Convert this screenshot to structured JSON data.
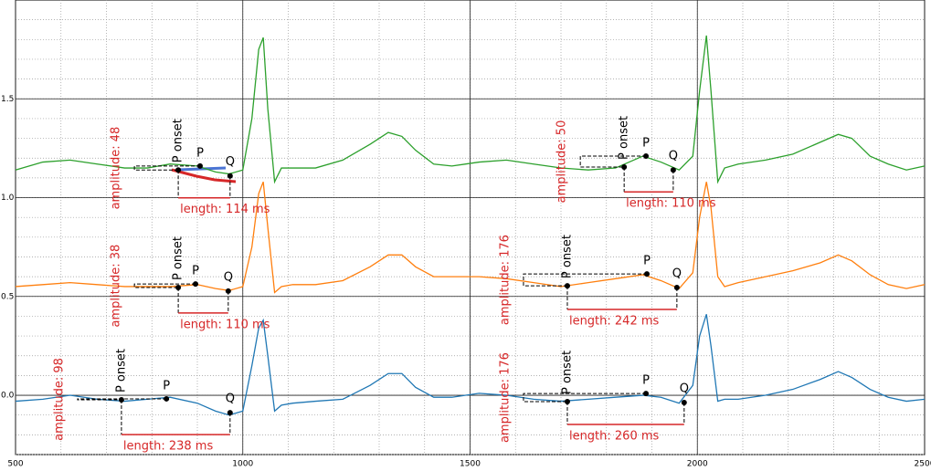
{
  "chart_data": {
    "type": "line",
    "xlim": [
      500,
      2500
    ],
    "xticks": [
      500,
      1000,
      1500,
      2000,
      2500
    ],
    "ylim": [
      -0.3,
      2.0
    ],
    "yticks": [
      {
        "value": 0,
        "label": "0.0"
      },
      0.5,
      {
        "value": 1,
        "label": "1.0"
      },
      1.5
    ],
    "grid": true,
    "x": [
      500,
      560,
      620,
      680,
      740,
      790,
      840,
      900,
      940,
      970,
      1000,
      1020,
      1035,
      1045,
      1055,
      1070,
      1085,
      1110,
      1160,
      1220,
      1280,
      1320,
      1350,
      1380,
      1420,
      1460,
      1520,
      1580,
      1640,
      1700,
      1760,
      1820,
      1880,
      1920,
      1960,
      1990,
      2005,
      2020,
      2030,
      2045,
      2060,
      2090,
      2150,
      2210,
      2270,
      2310,
      2340,
      2380,
      2420,
      2460,
      2500
    ],
    "series": [
      {
        "color": "#2ca02c",
        "values": [
          1.14,
          1.18,
          1.19,
          1.17,
          1.15,
          1.15,
          1.17,
          1.16,
          1.13,
          1.12,
          1.14,
          1.4,
          1.75,
          1.81,
          1.45,
          1.08,
          1.15,
          1.15,
          1.15,
          1.19,
          1.27,
          1.33,
          1.31,
          1.24,
          1.17,
          1.16,
          1.18,
          1.19,
          1.17,
          1.15,
          1.14,
          1.15,
          1.21,
          1.18,
          1.14,
          1.21,
          1.54,
          1.82,
          1.54,
          1.08,
          1.15,
          1.17,
          1.19,
          1.22,
          1.28,
          1.32,
          1.3,
          1.21,
          1.17,
          1.14,
          1.16
        ]
      },
      {
        "color": "#ff7f0e",
        "values": [
          0.55,
          0.56,
          0.57,
          0.56,
          0.55,
          0.55,
          0.55,
          0.56,
          0.54,
          0.53,
          0.55,
          0.75,
          1.02,
          1.08,
          0.85,
          0.52,
          0.55,
          0.56,
          0.56,
          0.58,
          0.65,
          0.71,
          0.71,
          0.65,
          0.6,
          0.6,
          0.6,
          0.59,
          0.57,
          0.55,
          0.57,
          0.59,
          0.61,
          0.58,
          0.54,
          0.62,
          0.9,
          1.08,
          0.95,
          0.6,
          0.55,
          0.57,
          0.6,
          0.63,
          0.67,
          0.71,
          0.68,
          0.61,
          0.56,
          0.54,
          0.56
        ]
      },
      {
        "color": "#1f77b4",
        "values": [
          -0.03,
          -0.02,
          0.0,
          -0.02,
          -0.03,
          -0.02,
          -0.01,
          -0.04,
          -0.08,
          -0.1,
          -0.08,
          0.15,
          0.34,
          0.38,
          0.2,
          -0.08,
          -0.05,
          -0.04,
          -0.03,
          -0.02,
          0.05,
          0.11,
          0.11,
          0.04,
          -0.01,
          -0.01,
          0.01,
          0.0,
          -0.02,
          -0.03,
          -0.02,
          -0.01,
          0.0,
          -0.01,
          -0.04,
          0.05,
          0.3,
          0.41,
          0.25,
          -0.03,
          -0.02,
          -0.02,
          0.0,
          0.03,
          0.08,
          0.12,
          0.09,
          0.03,
          -0.01,
          -0.03,
          -0.02
        ]
      }
    ],
    "annotations": [
      {
        "onset": {
          "x": 858,
          "y": 1.14
        },
        "p": {
          "x": 906,
          "y": 1.16
        },
        "q": {
          "x": 972,
          "y": 1.11
        },
        "onset_label": "P onset",
        "p_label": "P",
        "q_label": "Q",
        "amplitude_label": "amplitude: 48",
        "length_label": "length: 114 ms"
      },
      {
        "onset": {
          "x": 1839,
          "y": 1.155
        },
        "p": {
          "x": 1887,
          "y": 1.21
        },
        "q": {
          "x": 1947,
          "y": 1.14
        },
        "onset_label": "P onset",
        "p_label": "P",
        "q_label": "Q",
        "amplitude_label": "amplitude: 50",
        "length_label": "length: 110 ms"
      },
      {
        "onset": {
          "x": 858,
          "y": 0.545
        },
        "p": {
          "x": 896,
          "y": 0.563
        },
        "q": {
          "x": 968,
          "y": 0.527
        },
        "onset_label": "P onset",
        "p_label": "P",
        "q_label": "Q",
        "amplitude_label": "amplitude: 38",
        "length_label": "length: 110 ms"
      },
      {
        "onset": {
          "x": 1714,
          "y": 0.554
        },
        "p": {
          "x": 1889,
          "y": 0.614
        },
        "q": {
          "x": 1955,
          "y": 0.545
        },
        "onset_label": "P onset",
        "p_label": "P",
        "q_label": "Q",
        "amplitude_label": "amplitude: 176",
        "length_label": "length: 242 ms"
      },
      {
        "onset": {
          "x": 733,
          "y": -0.023
        },
        "p": {
          "x": 832,
          "y": -0.018
        },
        "q": {
          "x": 972,
          "y": -0.088
        },
        "onset_label": "P onset",
        "p_label": "P",
        "q_label": "Q",
        "amplitude_label": "amplitude: 98",
        "length_label": "length: 238 ms"
      },
      {
        "onset": {
          "x": 1714,
          "y": -0.032
        },
        "p": {
          "x": 1887,
          "y": 0.009
        },
        "q": {
          "x": 1971,
          "y": -0.037
        },
        "onset_label": "P onset",
        "p_label": "P",
        "q_label": "Q",
        "amplitude_label": "amplitude: 176",
        "length_label": "length: 260 ms"
      }
    ]
  }
}
